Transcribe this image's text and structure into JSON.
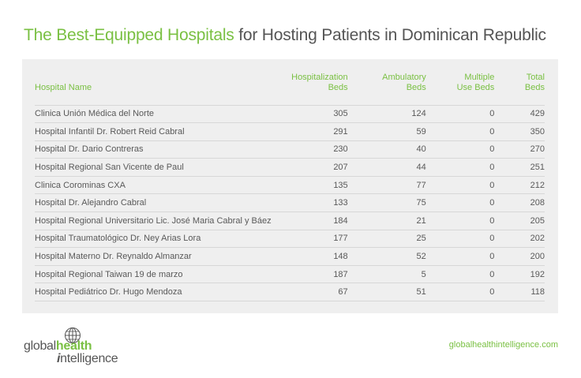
{
  "header": {
    "title_accent": "The Best-Equipped Hospitals",
    "title_rest": " for Hosting Patients in Dominican Republic"
  },
  "table": {
    "headers": {
      "name": "Hospital Name",
      "hosp_line1": "Hospitalization",
      "hosp_line2": "Beds",
      "amb_line1": "Ambulatory",
      "amb_line2": "Beds",
      "multi_line1": "Multiple",
      "multi_line2": "Use Beds",
      "total_line1": "Total",
      "total_line2": "Beds"
    },
    "rows": [
      {
        "name": "Clinica Unión Médica del Norte",
        "hosp": "305",
        "amb": "124",
        "multi": "0",
        "total": "429"
      },
      {
        "name": "Hospital Infantil Dr. Robert Reid Cabral",
        "hosp": "291",
        "amb": "59",
        "multi": "0",
        "total": "350"
      },
      {
        "name": "Hospital Dr. Dario Contreras",
        "hosp": "230",
        "amb": "40",
        "multi": "0",
        "total": "270"
      },
      {
        "name": "Hospital Regional San Vicente de Paul",
        "hosp": "207",
        "amb": "44",
        "multi": "0",
        "total": "251"
      },
      {
        "name": "Clinica Corominas CXA",
        "hosp": "135",
        "amb": "77",
        "multi": "0",
        "total": "212"
      },
      {
        "name": "Hospital Dr. Alejandro Cabral",
        "hosp": "133",
        "amb": "75",
        "multi": "0",
        "total": "208"
      },
      {
        "name": "Hospital Regional Universitario Lic. José Maria Cabral y Báez",
        "hosp": "184",
        "amb": "21",
        "multi": "0",
        "total": "205"
      },
      {
        "name": "Hospital Traumatológico Dr. Ney Arias Lora",
        "hosp": "177",
        "amb": "25",
        "multi": "0",
        "total": "202"
      },
      {
        "name": "Hospital Materno Dr. Reynaldo Almanzar",
        "hosp": "148",
        "amb": "52",
        "multi": "0",
        "total": "200"
      },
      {
        "name": "Hospital Regional Taiwan 19 de marzo",
        "hosp": "187",
        "amb": "5",
        "multi": "0",
        "total": "192"
      },
      {
        "name": "Hospital Pediátrico Dr. Hugo Mendoza",
        "hosp": "67",
        "amb": "51",
        "multi": "0",
        "total": "118"
      }
    ]
  },
  "footer": {
    "logo_global": "global",
    "logo_health": "health",
    "logo_i": "i",
    "logo_ntelligence": "ntelligence",
    "url": "globalhealthintelligence.com"
  },
  "colors": {
    "accent": "#7ac043",
    "text": "#595959",
    "panel_bg": "#efefef"
  },
  "icons": {
    "logo_icon": "globe-icon"
  }
}
